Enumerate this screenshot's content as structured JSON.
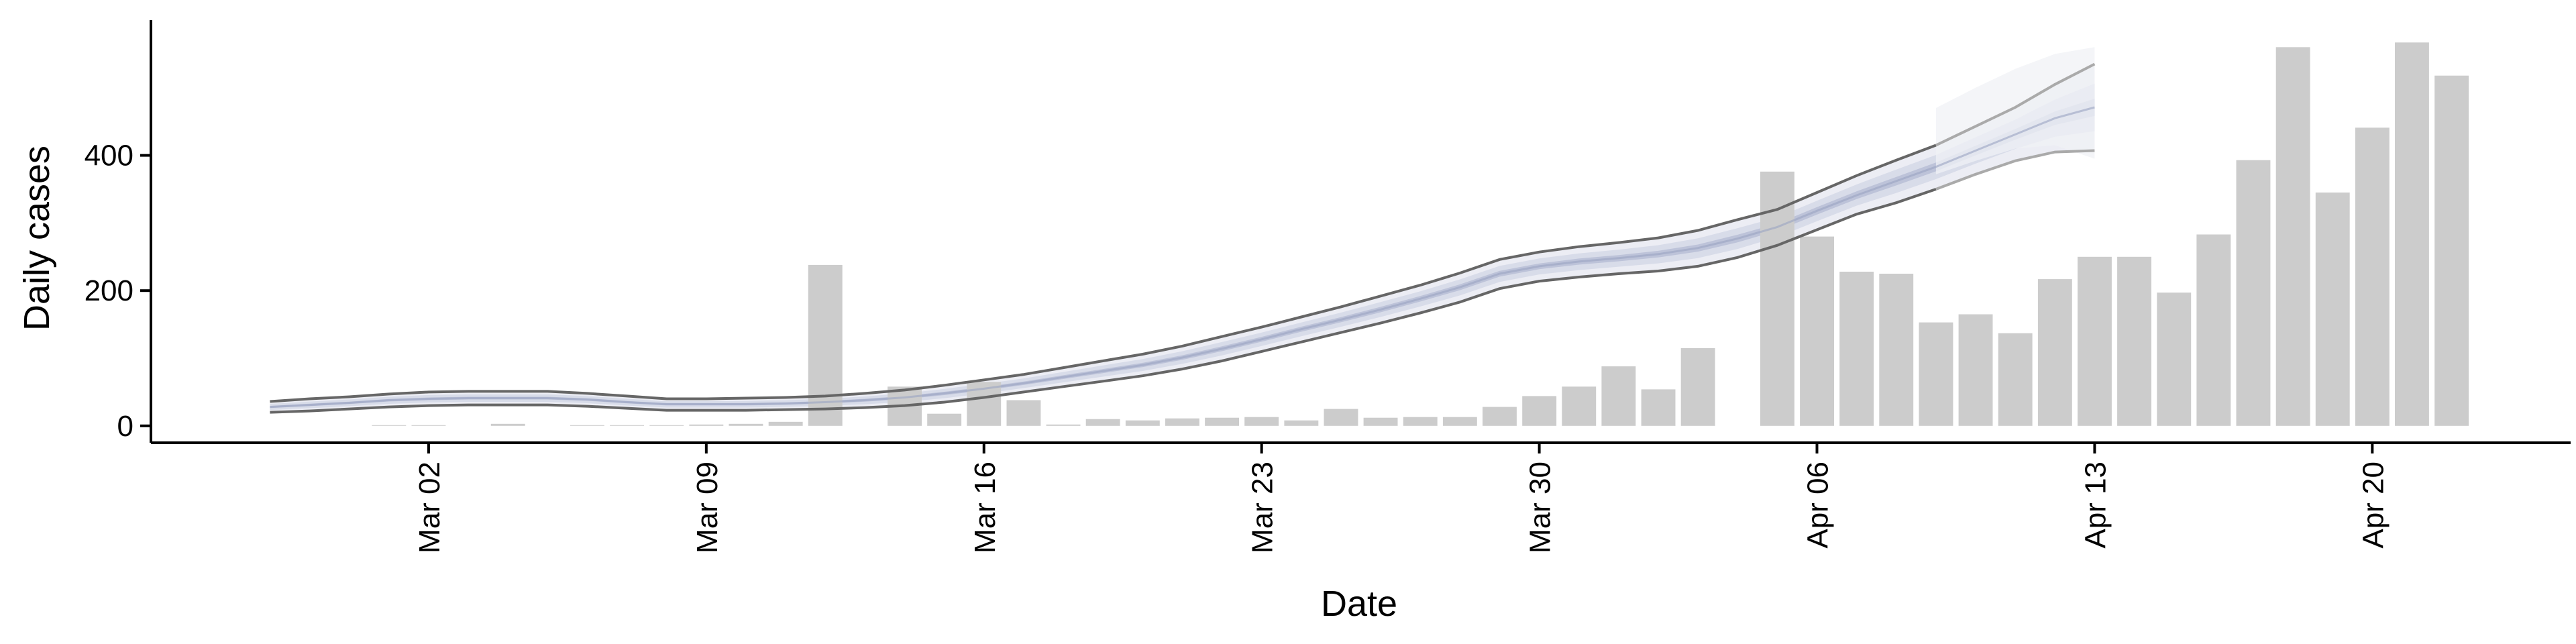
{
  "chart_data": {
    "type": "bar",
    "xlabel": "Date",
    "ylabel": "Daily cases",
    "x_tick_labels": [
      "Mar 02",
      "Mar 09",
      "Mar 16",
      "Mar 23",
      "Mar 30",
      "Apr 06",
      "Apr 13",
      "Apr 20"
    ],
    "x_tick_dates": [
      "2020-03-02",
      "2020-03-09",
      "2020-03-16",
      "2020-03-23",
      "2020-03-30",
      "2020-04-06",
      "2020-04-13",
      "2020-04-20"
    ],
    "y_ticks": [
      0,
      200,
      400
    ],
    "y_tick_labels": [
      "0",
      "200",
      "400"
    ],
    "xlim": [
      "2020-02-24",
      "2020-04-25"
    ],
    "ylim": [
      -25,
      600
    ],
    "grid": false,
    "legend": "none",
    "colors": {
      "bars": "#cccccc",
      "band_outer": "#e7e9f1",
      "band_middle": "#d3d7e6",
      "band_inner": "#b6bdd4",
      "estimate_line": "#666666",
      "forecast_line": "#aaaaaa",
      "forecast_band": "#f0f1f6",
      "axis": "#000000"
    },
    "series": [
      {
        "type": "bar",
        "values": [
          [
            "2020-03-01",
            1
          ],
          [
            "2020-03-02",
            1
          ],
          [
            "2020-03-04",
            3
          ],
          [
            "2020-03-06",
            1
          ],
          [
            "2020-03-07",
            1
          ],
          [
            "2020-03-08",
            1
          ],
          [
            "2020-03-09",
            2
          ],
          [
            "2020-03-10",
            3
          ],
          [
            "2020-03-11",
            6
          ],
          [
            "2020-03-12",
            238
          ],
          [
            "2020-03-14",
            58
          ],
          [
            "2020-03-15",
            18
          ],
          [
            "2020-03-16",
            65
          ],
          [
            "2020-03-17",
            38
          ],
          [
            "2020-03-18",
            2
          ],
          [
            "2020-03-19",
            10
          ],
          [
            "2020-03-20",
            8
          ],
          [
            "2020-03-21",
            11
          ],
          [
            "2020-03-22",
            12
          ],
          [
            "2020-03-23",
            13
          ],
          [
            "2020-03-24",
            8
          ],
          [
            "2020-03-25",
            25
          ],
          [
            "2020-03-26",
            12
          ],
          [
            "2020-03-27",
            13
          ],
          [
            "2020-03-28",
            13
          ],
          [
            "2020-03-29",
            28
          ],
          [
            "2020-03-30",
            44
          ],
          [
            "2020-03-31",
            58
          ],
          [
            "2020-04-01",
            88
          ],
          [
            "2020-04-02",
            54
          ],
          [
            "2020-04-03",
            115
          ],
          [
            "2020-04-05",
            376
          ],
          [
            "2020-04-06",
            280
          ],
          [
            "2020-04-07",
            228
          ],
          [
            "2020-04-08",
            225
          ],
          [
            "2020-04-09",
            153
          ],
          [
            "2020-04-10",
            165
          ],
          [
            "2020-04-11",
            137
          ],
          [
            "2020-04-12",
            217
          ],
          [
            "2020-04-13",
            250
          ],
          [
            "2020-04-14",
            250
          ],
          [
            "2020-04-15",
            197
          ],
          [
            "2020-04-16",
            283
          ],
          [
            "2020-04-17",
            393
          ],
          [
            "2020-04-18",
            560
          ],
          [
            "2020-04-19",
            345
          ],
          [
            "2020-04-20",
            441
          ],
          [
            "2020-04-21",
            567
          ],
          [
            "2020-04-22",
            518
          ]
        ]
      },
      {
        "type": "band",
        "x": [
          "2020-02-27",
          "2020-02-28",
          "2020-02-29",
          "2020-03-01",
          "2020-03-02",
          "2020-03-03",
          "2020-03-04",
          "2020-03-05",
          "2020-03-06",
          "2020-03-07",
          "2020-03-08",
          "2020-03-09",
          "2020-03-10",
          "2020-03-11",
          "2020-03-12",
          "2020-03-13",
          "2020-03-14",
          "2020-03-15",
          "2020-03-16",
          "2020-03-17",
          "2020-03-18",
          "2020-03-19",
          "2020-03-20",
          "2020-03-21",
          "2020-03-22",
          "2020-03-23",
          "2020-03-24",
          "2020-03-25",
          "2020-03-26",
          "2020-03-27",
          "2020-03-28",
          "2020-03-29",
          "2020-03-30",
          "2020-03-31",
          "2020-04-01",
          "2020-04-02",
          "2020-04-03",
          "2020-04-04",
          "2020-04-05",
          "2020-04-06",
          "2020-04-07",
          "2020-04-08",
          "2020-04-09",
          "2020-04-10",
          "2020-04-11",
          "2020-04-12",
          "2020-04-13"
        ],
        "lower": [
          20,
          22,
          25,
          28,
          30,
          31,
          31,
          31,
          29,
          26,
          23,
          23,
          23,
          24,
          25,
          27,
          30,
          35,
          42,
          50,
          58,
          66,
          74,
          84,
          96,
          110,
          124,
          138,
          152,
          167,
          183,
          203,
          214,
          220,
          225,
          229,
          236,
          249,
          267,
          290,
          313,
          330,
          350,
          372,
          392,
          405,
          407
        ],
        "upper": [
          36,
          40,
          43,
          47,
          50,
          51,
          51,
          51,
          48,
          44,
          40,
          40,
          41,
          42,
          44,
          48,
          53,
          60,
          68,
          76,
          86,
          96,
          106,
          118,
          132,
          146,
          161,
          176,
          192,
          208,
          226,
          246,
          257,
          265,
          271,
          278,
          289,
          305,
          320,
          345,
          370,
          393,
          415,
          443,
          471,
          505,
          535
        ],
        "estimate": [
          28,
          31,
          34,
          38,
          40,
          41,
          41,
          41,
          39,
          35,
          32,
          32,
          32,
          33,
          35,
          38,
          42,
          48,
          55,
          63,
          72,
          81,
          90,
          101,
          114,
          128,
          143,
          157,
          172,
          188,
          205,
          225,
          236,
          243,
          248,
          254,
          263,
          277,
          294,
          318,
          341,
          362,
          383,
          407,
          431,
          455,
          471
        ]
      },
      {
        "type": "forecast_band",
        "x": [
          "2020-04-09",
          "2020-04-10",
          "2020-04-11",
          "2020-04-12",
          "2020-04-13"
        ],
        "lower": [
          372,
          392,
          410,
          415,
          395
        ],
        "upper": [
          470,
          500,
          528,
          550,
          560
        ]
      }
    ]
  }
}
